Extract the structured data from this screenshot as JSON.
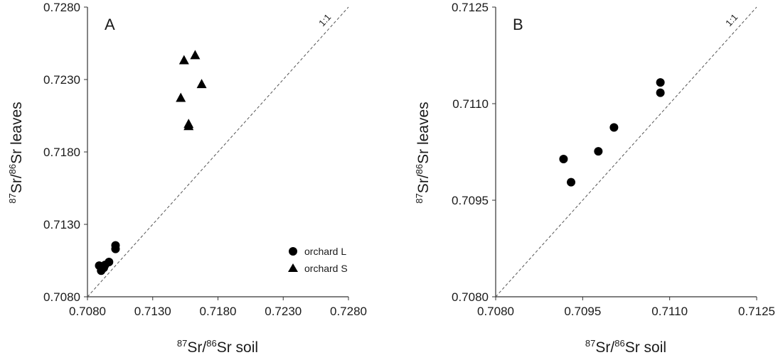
{
  "chart_data": [
    {
      "type": "scatter",
      "panel_label": "A",
      "xlabel": {
        "sup1": "87",
        "t1": "Sr/",
        "sup2": "86",
        "t2": "Sr soil"
      },
      "ylabel": {
        "sup1": "87",
        "t1": "Sr/",
        "sup2": "86",
        "t2": "Sr leaves"
      },
      "xlim": [
        0.708,
        0.728
      ],
      "ylim": [
        0.708,
        0.728
      ],
      "xticks": [
        "0.7080",
        "0.7130",
        "0.7180",
        "0.7230",
        "0.7280"
      ],
      "yticks": [
        "0.7080",
        "0.7130",
        "0.7180",
        "0.7230",
        "0.7280"
      ],
      "reference_line": {
        "label": "1:1",
        "style": "dashed"
      },
      "grid": false,
      "legend_position": "bottom-right",
      "series": [
        {
          "name": "orchard L",
          "marker": "circle",
          "x": [
            0.7089,
            0.70905,
            0.70925,
            0.70935,
            0.70965,
            0.71015,
            0.71015
          ],
          "y": [
            0.71015,
            0.7098,
            0.71,
            0.7102,
            0.7104,
            0.7113,
            0.71155
          ]
        },
        {
          "name": "orchard S",
          "marker": "triangle",
          "x": [
            0.7154,
            0.71575,
            0.71575,
            0.71625,
            0.71675,
            0.71515
          ],
          "y": [
            0.72435,
            0.71995,
            0.7198,
            0.7247,
            0.7227,
            0.72175
          ]
        }
      ]
    },
    {
      "type": "scatter",
      "panel_label": "B",
      "xlabel": {
        "sup1": "87",
        "t1": "Sr/",
        "sup2": "86",
        "t2": "Sr soil"
      },
      "ylabel": {
        "sup1": "87",
        "t1": "Sr/",
        "sup2": "86",
        "t2": "Sr leaves"
      },
      "xlim": [
        0.708,
        0.7125
      ],
      "ylim": [
        0.708,
        0.7125
      ],
      "xticks": [
        "0.7080",
        "0.7095",
        "0.7110",
        "0.7125"
      ],
      "yticks": [
        "0.7080",
        "0.7095",
        "0.7110",
        "0.7125"
      ],
      "reference_line": {
        "label": "1:1",
        "style": "dashed"
      },
      "grid": false,
      "series": [
        {
          "marker": "circle",
          "x": [
            0.70917,
            0.7093,
            0.70977,
            0.71004,
            0.71084,
            0.71084
          ],
          "y": [
            0.71014,
            0.70978,
            0.71026,
            0.71063,
            0.71133,
            0.71117
          ]
        }
      ]
    }
  ]
}
